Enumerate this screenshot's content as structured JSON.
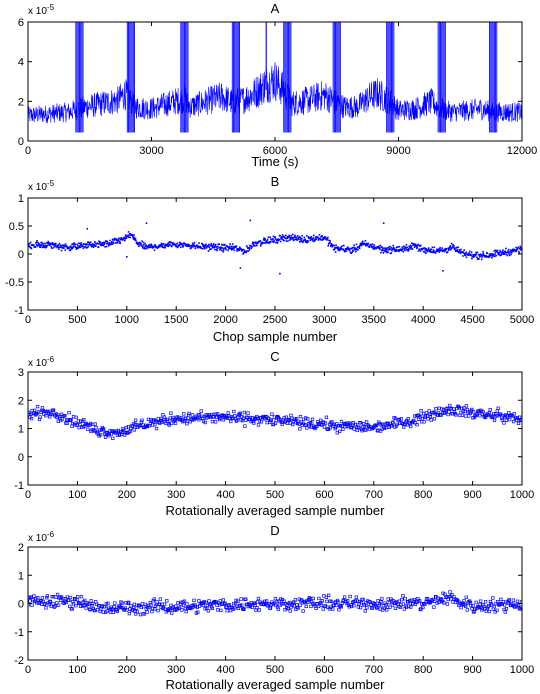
{
  "chart_data": [
    {
      "type": "line",
      "title": "A",
      "xlabel": "Time (s)",
      "ylabel": "",
      "y_multiplier": "x 10",
      "y_exponent": "-5",
      "xlim": [
        0,
        12000
      ],
      "ylim": [
        -1,
        6
      ],
      "x_ticks": [
        "0",
        "3000",
        "6000",
        "9000",
        "12000"
      ],
      "y_ticks": [
        "0",
        "2",
        "4",
        "6"
      ],
      "color": "#0000ff",
      "grid": false,
      "series": [
        {
          "baseline_x": [
            0,
            500,
            1000,
            1200,
            1400,
            1800,
            2200,
            2350,
            2600,
            3000,
            3400,
            3800,
            3950,
            4300,
            4700,
            4950,
            5200,
            5500,
            5800,
            6000,
            6200,
            6400,
            6800,
            7200,
            7450,
            7700,
            8000,
            8300,
            8500,
            8800,
            9000,
            9400,
            9800,
            10000,
            10300,
            10700,
            11000,
            11300,
            11700,
            12000
          ],
          "baseline_y": [
            0.5,
            0.6,
            0.7,
            0.9,
            1.0,
            1.2,
            1.4,
            1.8,
            1.0,
            0.9,
            1.2,
            1.5,
            1.0,
            1.3,
            1.6,
            1.3,
            1.4,
            1.8,
            2.4,
            2.6,
            2.0,
            1.2,
            1.4,
            1.7,
            1.3,
            1.0,
            1.0,
            1.6,
            1.8,
            1.3,
            0.8,
            0.9,
            1.3,
            0.9,
            0.7,
            0.8,
            0.9,
            0.7,
            0.7,
            0.7
          ],
          "spike_x": [
            1250,
            2500,
            3800,
            5050,
            6300,
            7500,
            8800,
            10050,
            11300
          ],
          "spike_top": 6,
          "spike_bottom": -0.5
        }
      ]
    },
    {
      "type": "scatter",
      "title": "B",
      "xlabel": "Chop sample number",
      "ylabel": "",
      "y_multiplier": "x 10",
      "y_exponent": "-5",
      "xlim": [
        0,
        5000
      ],
      "ylim": [
        -1,
        1
      ],
      "x_ticks": [
        "0",
        "500",
        "1000",
        "1500",
        "2000",
        "2500",
        "3000",
        "3500",
        "4000",
        "4500",
        "5000"
      ],
      "y_ticks": [
        "-1",
        "-0.5",
        "0",
        "0.5",
        "1"
      ],
      "color": "#0000ff",
      "grid": false,
      "series": [
        {
          "trend_x": [
            0,
            200,
            400,
            600,
            800,
            950,
            1050,
            1100,
            1200,
            1500,
            1800,
            2100,
            2200,
            2300,
            2500,
            2600,
            2800,
            3000,
            3100,
            3300,
            3400,
            3600,
            3800,
            3900,
            4000,
            4200,
            4300,
            4400,
            4600,
            4900,
            5000
          ],
          "trend_y": [
            0.15,
            0.17,
            0.12,
            0.16,
            0.18,
            0.25,
            0.35,
            0.2,
            0.12,
            0.18,
            0.13,
            0.1,
            0.05,
            0.2,
            0.25,
            0.3,
            0.26,
            0.3,
            0.1,
            0.08,
            0.18,
            0.08,
            0.08,
            0.15,
            0.08,
            0.06,
            0.12,
            0.0,
            -0.03,
            0.05,
            0.1
          ],
          "spread": 0.09,
          "count": 1200
        }
      ]
    },
    {
      "type": "scatter",
      "title": "C",
      "xlabel": "Rotationally averaged sample number",
      "ylabel": "",
      "y_multiplier": "x 10",
      "y_exponent": "-6",
      "xlim": [
        0,
        1000
      ],
      "ylim": [
        -1,
        3
      ],
      "x_ticks": [
        "0",
        "100",
        "200",
        "300",
        "400",
        "500",
        "600",
        "700",
        "800",
        "900",
        "1000"
      ],
      "y_ticks": [
        "-1",
        "0",
        "1",
        "2",
        "3"
      ],
      "color": "#0000ff",
      "grid": false,
      "series": [
        {
          "trend_x": [
            0,
            50,
            100,
            150,
            180,
            250,
            300,
            400,
            500,
            550,
            620,
            700,
            750,
            800,
            850,
            900,
            950,
            1000
          ],
          "trend_y": [
            1.5,
            1.6,
            1.2,
            0.9,
            0.85,
            1.2,
            1.35,
            1.4,
            1.3,
            1.2,
            1.1,
            1.05,
            1.2,
            1.4,
            1.7,
            1.55,
            1.45,
            1.35
          ],
          "spread": 0.3,
          "count": 620
        }
      ]
    },
    {
      "type": "scatter",
      "title": "D",
      "xlabel": "Rotationally averaged sample number",
      "ylabel": "",
      "y_multiplier": "x 10",
      "y_exponent": "-6",
      "xlim": [
        0,
        1000
      ],
      "ylim": [
        -2,
        2
      ],
      "x_ticks": [
        "0",
        "100",
        "200",
        "300",
        "400",
        "500",
        "600",
        "700",
        "800",
        "900",
        "1000"
      ],
      "y_ticks": [
        "-2",
        "-1",
        "0",
        "1",
        "2"
      ],
      "color": "#0000ff",
      "grid": false,
      "series": [
        {
          "trend_x": [
            0,
            100,
            150,
            200,
            500,
            800,
            850,
            900,
            1000
          ],
          "trend_y": [
            0.05,
            0.1,
            -0.2,
            -0.15,
            0.0,
            0.0,
            0.2,
            -0.1,
            0.0
          ],
          "spread": 0.35,
          "count": 620
        }
      ]
    }
  ]
}
